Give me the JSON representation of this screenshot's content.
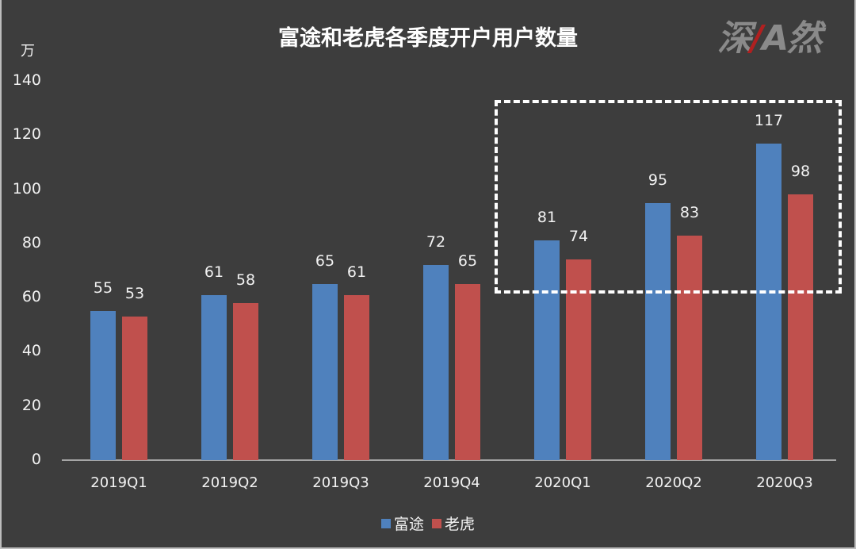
{
  "chart_data": {
    "type": "bar",
    "title": "富途和老虎各季度开户用户数量",
    "ylabel": "万",
    "xlabel": "",
    "ylim": [
      0,
      140
    ],
    "yticks": [
      0,
      20,
      40,
      60,
      80,
      100,
      120,
      140
    ],
    "grid": false,
    "legend_position": "bottom",
    "categories": [
      "2019Q1",
      "2019Q2",
      "2019Q3",
      "2019Q4",
      "2020Q1",
      "2020Q2",
      "2020Q3"
    ],
    "series": [
      {
        "name": "富途",
        "color": "#4f81bd",
        "values": [
          55,
          61,
          65,
          72,
          81,
          95,
          117
        ]
      },
      {
        "name": "老虎",
        "color": "#c0504d",
        "values": [
          53,
          58,
          61,
          65,
          74,
          83,
          98
        ]
      }
    ],
    "annotations": [
      {
        "type": "dashed-box",
        "covers": [
          "2020Q1",
          "2020Q2",
          "2020Q3"
        ],
        "color": "#ffffff"
      }
    ]
  },
  "watermark": {
    "text_parts": [
      "深",
      "/",
      "A",
      "然"
    ]
  },
  "ytick_labels": [
    "140",
    "120",
    "100",
    "80",
    "60",
    "40",
    "20",
    "0"
  ]
}
